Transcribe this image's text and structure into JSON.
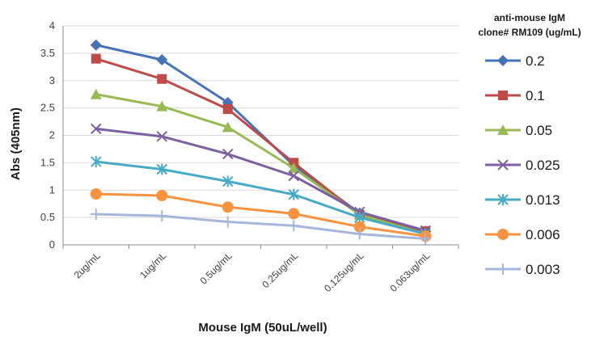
{
  "chart_data": {
    "type": "line",
    "xlabel": "Mouse IgM (50uL/well)",
    "ylabel": "Abs (405nm)",
    "categories": [
      "2ug/mL",
      "1ug/mL",
      "0.5ug/mL",
      "0.25ug/mL",
      "0.125ug/mL",
      "0.063ug/mL"
    ],
    "ylim": [
      0,
      4
    ],
    "yticks": [
      "0",
      "0.5",
      "1",
      "1.5",
      "2",
      "2.5",
      "3",
      "3.5",
      "4"
    ],
    "grid": "horizontal",
    "legend": {
      "placement": "right",
      "title_lines": [
        "anti-mouse IgM",
        "clone# RM109 (ug/mL)"
      ]
    },
    "series": [
      {
        "name": "0.2",
        "color": "#4672B6",
        "marker": "diamond",
        "values": [
          3.65,
          3.38,
          2.6,
          1.45,
          0.58,
          0.25
        ]
      },
      {
        "name": "0.1",
        "color": "#BE4B48",
        "marker": "square",
        "values": [
          3.4,
          3.03,
          2.48,
          1.5,
          0.55,
          0.25
        ]
      },
      {
        "name": "0.05",
        "color": "#98B954",
        "marker": "triangle",
        "values": [
          2.75,
          2.53,
          2.15,
          1.4,
          0.55,
          0.2
        ]
      },
      {
        "name": "0.025",
        "color": "#7D60A0",
        "marker": "x",
        "values": [
          2.12,
          1.98,
          1.66,
          1.26,
          0.6,
          0.26
        ]
      },
      {
        "name": "0.013",
        "color": "#46AAC5",
        "marker": "asterisk",
        "values": [
          1.52,
          1.38,
          1.16,
          0.92,
          0.5,
          0.2
        ]
      },
      {
        "name": "0.006",
        "color": "#F69240",
        "marker": "circle",
        "values": [
          0.93,
          0.9,
          0.69,
          0.57,
          0.33,
          0.16
        ]
      },
      {
        "name": "0.003",
        "color": "#A5B6D8",
        "marker": "plus",
        "values": [
          0.56,
          0.53,
          0.42,
          0.35,
          0.2,
          0.11
        ]
      }
    ]
  }
}
